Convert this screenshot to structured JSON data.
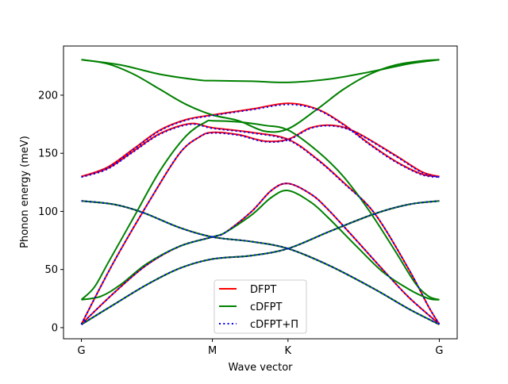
{
  "chart_data": {
    "type": "line",
    "title": "",
    "xlabel": "Wave vector",
    "ylabel": "Phonon energy (meV)",
    "xticks": [
      {
        "value": 0,
        "label": "G"
      },
      {
        "value": 1,
        "label": "M"
      },
      {
        "value": 1.577,
        "label": "K"
      },
      {
        "value": 2.732,
        "label": "G"
      }
    ],
    "yticks": [
      0,
      50,
      100,
      150,
      200
    ],
    "xlim": [
      -0.1366,
      2.8686
    ],
    "ylim": [
      -9.6,
      242.3
    ],
    "grid": false,
    "legend_position": "lower center",
    "series": [
      {
        "name": "DFPT",
        "color": "#ff0000",
        "style": "solid",
        "branches": [
          [
            [
              0,
              2.7
            ],
            [
              0.25,
              20
            ],
            [
              0.5,
              37
            ],
            [
              0.75,
              51
            ],
            [
              1,
              59
            ],
            [
              1.3,
              62
            ],
            [
              1.577,
              68
            ],
            [
              1.9,
              83
            ],
            [
              2.24,
              98
            ],
            [
              2.5,
              106
            ],
            [
              2.732,
              109
            ]
          ],
          [
            [
              0,
              109
            ],
            [
              0.25,
              106
            ],
            [
              0.47,
              99
            ],
            [
              0.75,
              86
            ],
            [
              1,
              78
            ],
            [
              1.3,
              74
            ],
            [
              1.577,
              68
            ],
            [
              1.9,
              53
            ],
            [
              2.24,
              33
            ],
            [
              2.5,
              16
            ],
            [
              2.732,
              2.7
            ]
          ],
          [
            [
              0,
              3
            ],
            [
              0.25,
              30
            ],
            [
              0.5,
              54
            ],
            [
              0.75,
              70
            ],
            [
              1,
              78
            ],
            [
              1.1,
              82
            ],
            [
              1.3,
              100
            ],
            [
              1.45,
              118
            ],
            [
              1.577,
              124
            ],
            [
              1.75,
              115
            ],
            [
              1.88,
              102
            ],
            [
              2.1,
              75
            ],
            [
              2.3,
              50
            ],
            [
              2.5,
              26
            ],
            [
              2.732,
              3
            ]
          ],
          [
            [
              0,
              3
            ],
            [
              0.25,
              57
            ],
            [
              0.53,
              111
            ],
            [
              0.75,
              150
            ],
            [
              0.9,
              164
            ],
            [
              1,
              168
            ],
            [
              1.2,
              166
            ],
            [
              1.4,
              160.5
            ],
            [
              1.577,
              162
            ],
            [
              1.75,
              172
            ],
            [
              1.92,
              174
            ],
            [
              2.1,
              168
            ],
            [
              2.4,
              148
            ],
            [
              2.6,
              134
            ],
            [
              2.732,
              130
            ]
          ],
          [
            [
              0,
              130
            ],
            [
              0.2,
              137
            ],
            [
              0.4,
              152
            ],
            [
              0.6,
              167
            ],
            [
              0.83,
              175.5
            ],
            [
              1,
              172
            ],
            [
              1.3,
              168
            ],
            [
              1.577,
              162
            ],
            [
              1.8,
              145
            ],
            [
              2.0,
              125
            ],
            [
              2.24,
              98
            ],
            [
              2.5,
              50
            ],
            [
              2.65,
              18
            ],
            [
              2.732,
              3
            ]
          ],
          [
            [
              0,
              130
            ],
            [
              0.2,
              138
            ],
            [
              0.4,
              154
            ],
            [
              0.6,
              170
            ],
            [
              0.8,
              179
            ],
            [
              1,
              183
            ],
            [
              1.3,
              188
            ],
            [
              1.577,
              193
            ],
            [
              1.8,
              188
            ],
            [
              2.0,
              175
            ],
            [
              2.2,
              158
            ],
            [
              2.4,
              143
            ],
            [
              2.6,
              132
            ],
            [
              2.732,
              130
            ]
          ]
        ]
      },
      {
        "name": "cDFPT",
        "color": "#008000",
        "style": "solid",
        "branches": [
          [
            [
              0,
              2.7
            ],
            [
              0.25,
              20
            ],
            [
              0.5,
              37
            ],
            [
              0.75,
              51
            ],
            [
              1,
              59
            ],
            [
              1.3,
              62
            ],
            [
              1.577,
              68
            ],
            [
              1.9,
              83
            ],
            [
              2.24,
              98
            ],
            [
              2.5,
              106
            ],
            [
              2.732,
              109
            ]
          ],
          [
            [
              0,
              109
            ],
            [
              0.25,
              106
            ],
            [
              0.47,
              99
            ],
            [
              0.75,
              86
            ],
            [
              1,
              78
            ],
            [
              1.3,
              74
            ],
            [
              1.577,
              68
            ],
            [
              1.9,
              53
            ],
            [
              2.24,
              33
            ],
            [
              2.5,
              16
            ],
            [
              2.732,
              2.7
            ]
          ],
          [
            [
              0,
              24
            ],
            [
              0.15,
              27
            ],
            [
              0.3,
              37
            ],
            [
              0.5,
              55
            ],
            [
              0.75,
              70
            ],
            [
              1,
              78
            ],
            [
              1.1,
              82
            ],
            [
              1.3,
              97
            ],
            [
              1.45,
              112
            ],
            [
              1.577,
              118
            ],
            [
              1.75,
              108
            ],
            [
              1.88,
              95
            ],
            [
              2.1,
              70
            ],
            [
              2.3,
              48
            ],
            [
              2.5,
              33
            ],
            [
              2.65,
              25
            ],
            [
              2.732,
              24
            ]
          ],
          [
            [
              0,
              24
            ],
            [
              0.1,
              35
            ],
            [
              0.21,
              57
            ],
            [
              0.4,
              95
            ],
            [
              0.6,
              135
            ],
            [
              0.8,
              165
            ],
            [
              0.95,
              177
            ],
            [
              1,
              178
            ],
            [
              1.2,
              177
            ],
            [
              1.4,
              174
            ],
            [
              1.577,
              170
            ],
            [
              1.8,
              152
            ],
            [
              2.0,
              130
            ],
            [
              2.2,
              100
            ],
            [
              2.4,
              65
            ],
            [
              2.55,
              38
            ],
            [
              2.65,
              27
            ],
            [
              2.732,
              24
            ]
          ],
          [
            [
              0,
              230.5
            ],
            [
              0.2,
              227
            ],
            [
              0.4,
              218
            ],
            [
              0.6,
              205
            ],
            [
              0.8,
              192
            ],
            [
              1,
              183
            ],
            [
              1.2,
              178
            ],
            [
              1.4,
              169
            ],
            [
              1.577,
              171
            ],
            [
              1.8,
              188
            ],
            [
              2.0,
              205
            ],
            [
              2.2,
              218
            ],
            [
              2.4,
              226
            ],
            [
              2.6,
              229.5
            ],
            [
              2.732,
              230.5
            ]
          ],
          [
            [
              0,
              230.5
            ],
            [
              0.3,
              226
            ],
            [
              0.6,
              218
            ],
            [
              0.9,
              213
            ],
            [
              1,
              212.5
            ],
            [
              1.3,
              212
            ],
            [
              1.577,
              211
            ],
            [
              1.9,
              214
            ],
            [
              2.2,
              220
            ],
            [
              2.5,
              227
            ],
            [
              2.732,
              230.5
            ]
          ]
        ]
      },
      {
        "name": "cDFPT+Π",
        "color": "#0000ff",
        "style": "dotted",
        "branches": [
          [
            [
              0,
              2.7
            ],
            [
              0.25,
              20
            ],
            [
              0.5,
              37
            ],
            [
              0.75,
              51
            ],
            [
              1,
              59
            ],
            [
              1.3,
              62
            ],
            [
              1.577,
              68
            ],
            [
              1.9,
              83
            ],
            [
              2.24,
              98
            ],
            [
              2.5,
              106
            ],
            [
              2.732,
              109
            ]
          ],
          [
            [
              0,
              109
            ],
            [
              0.25,
              106
            ],
            [
              0.47,
              99
            ],
            [
              0.75,
              86
            ],
            [
              1,
              78
            ],
            [
              1.3,
              74
            ],
            [
              1.577,
              68
            ],
            [
              1.9,
              53
            ],
            [
              2.24,
              33
            ],
            [
              2.5,
              16
            ],
            [
              2.732,
              2.7
            ]
          ],
          [
            [
              0,
              3
            ],
            [
              0.25,
              30
            ],
            [
              0.5,
              54
            ],
            [
              0.75,
              70
            ],
            [
              1,
              78
            ],
            [
              1.1,
              82
            ],
            [
              1.3,
              100
            ],
            [
              1.45,
              118
            ],
            [
              1.577,
              124
            ],
            [
              1.75,
              115
            ],
            [
              1.88,
              102
            ],
            [
              2.1,
              75
            ],
            [
              2.3,
              50
            ],
            [
              2.5,
              26
            ],
            [
              2.732,
              3
            ]
          ],
          [
            [
              0,
              3
            ],
            [
              0.25,
              57
            ],
            [
              0.53,
              111
            ],
            [
              0.75,
              150
            ],
            [
              0.9,
              164
            ],
            [
              1,
              167.5
            ],
            [
              1.2,
              165.5
            ],
            [
              1.4,
              160
            ],
            [
              1.577,
              161.5
            ],
            [
              1.75,
              171.5
            ],
            [
              1.92,
              173.5
            ],
            [
              2.1,
              167.5
            ],
            [
              2.4,
              147.5
            ],
            [
              2.6,
              133.5
            ],
            [
              2.732,
              129.5
            ]
          ],
          [
            [
              0,
              129.5
            ],
            [
              0.2,
              136.5
            ],
            [
              0.4,
              151.5
            ],
            [
              0.6,
              166.5
            ],
            [
              0.83,
              175
            ],
            [
              1,
              171.5
            ],
            [
              1.3,
              167.5
            ],
            [
              1.577,
              161.5
            ],
            [
              1.8,
              144.5
            ],
            [
              2.0,
              124.5
            ],
            [
              2.24,
              98
            ],
            [
              2.5,
              50
            ],
            [
              2.65,
              18
            ],
            [
              2.732,
              3
            ]
          ],
          [
            [
              0,
              129.5
            ],
            [
              0.2,
              137.5
            ],
            [
              0.4,
              153.5
            ],
            [
              0.6,
              169.5
            ],
            [
              0.8,
              178.5
            ],
            [
              1,
              182.5
            ],
            [
              1.3,
              187.5
            ],
            [
              1.577,
              192
            ],
            [
              1.8,
              187.5
            ],
            [
              2.0,
              174.5
            ],
            [
              2.2,
              157.5
            ],
            [
              2.4,
              142.5
            ],
            [
              2.6,
              131.5
            ],
            [
              2.732,
              129.5
            ]
          ]
        ]
      }
    ]
  }
}
